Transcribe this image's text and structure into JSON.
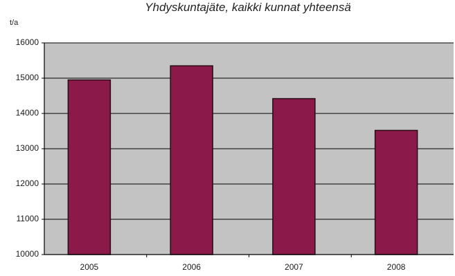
{
  "chart_data": {
    "type": "bar",
    "title": "Yhdyskuntajäte, kaikki kunnat yhteensä",
    "ylabel": "t/a",
    "xlabel": "",
    "categories": [
      "2005",
      "2006",
      "2007",
      "2008"
    ],
    "values": [
      14950,
      15350,
      14420,
      13520
    ],
    "ylim": [
      10000,
      16000
    ],
    "yticks": [
      10000,
      11000,
      12000,
      13000,
      14000,
      15000,
      16000
    ],
    "grid": true,
    "legend": "none",
    "colors": {
      "bar": "#8b1a4a",
      "bar_stroke": "#2a0a16",
      "plot_background": "#c3c3c3",
      "gridline": "#000000"
    }
  }
}
